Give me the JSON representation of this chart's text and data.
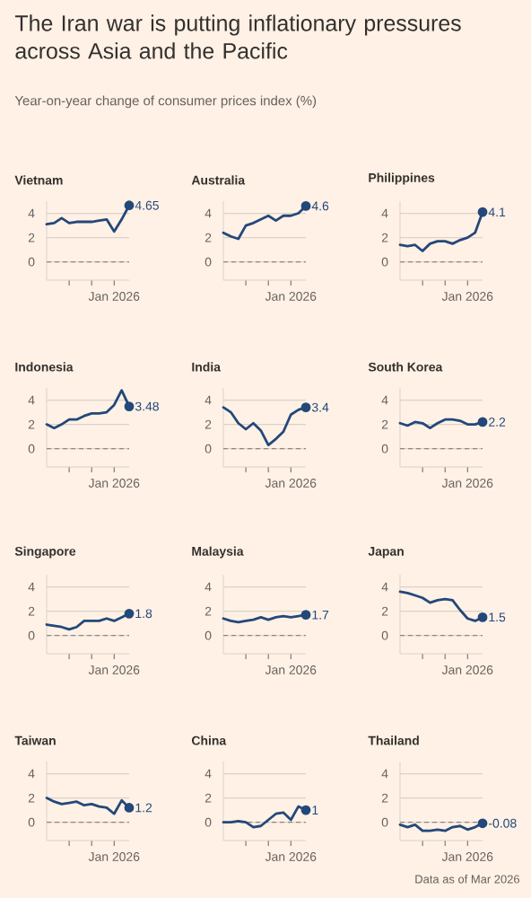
{
  "chart_data": [
    {
      "type": "other",
      "title": "The Iran war is putting inflationary pressures across Asia and the Pacific",
      "subtitle": "Year-on-year change of consumer prices index (%)",
      "annotations": [
        "Data as of Mar 2026"
      ]
    },
    {
      "type": "line",
      "title": "Vietnam",
      "ylim": [
        -1.5,
        5
      ],
      "categories": [
        null,
        null,
        null,
        null,
        null,
        null,
        null,
        null,
        null,
        "Jan 2026",
        null,
        null
      ],
      "series": [
        {
          "color": "#23487a",
          "values": [
            3.1,
            3.2,
            3.6,
            3.2,
            3.3,
            3.3,
            3.3,
            3.4,
            3.5,
            2.5,
            3.5,
            4.65
          ],
          "value_labels": [
            null,
            null,
            null,
            null,
            null,
            null,
            null,
            null,
            null,
            null,
            null,
            "4.65"
          ]
        }
      ],
      "yticks": [
        0,
        2,
        4
      ],
      "grid": "y",
      "ref_lines": [
        {
          "axis": "y",
          "value": 0,
          "line_style": "dashed"
        }
      ]
    },
    {
      "type": "line",
      "title": "Australia",
      "ylim": [
        -1.5,
        5
      ],
      "categories": [
        null,
        null,
        null,
        null,
        null,
        null,
        null,
        null,
        null,
        "Jan 2026",
        null,
        null
      ],
      "series": [
        {
          "color": "#23487a",
          "values": [
            2.4,
            2.1,
            1.9,
            3.0,
            3.2,
            3.5,
            3.8,
            3.4,
            3.8,
            3.8,
            4.0,
            4.6
          ],
          "value_labels": [
            null,
            null,
            null,
            null,
            null,
            null,
            null,
            null,
            null,
            null,
            null,
            "4.6"
          ]
        }
      ],
      "yticks": [
        0,
        2,
        4
      ],
      "grid": "y",
      "ref_lines": [
        {
          "axis": "y",
          "value": 0,
          "line_style": "dashed"
        }
      ]
    },
    {
      "type": "line",
      "title": "Philippines",
      "ylim": [
        -1.5,
        5
      ],
      "categories": [
        null,
        null,
        null,
        null,
        null,
        null,
        null,
        null,
        null,
        "Jan 2026",
        null,
        null
      ],
      "series": [
        {
          "color": "#23487a",
          "values": [
            1.4,
            1.3,
            1.4,
            0.9,
            1.5,
            1.7,
            1.7,
            1.5,
            1.8,
            2.0,
            2.4,
            4.1
          ],
          "value_labels": [
            null,
            null,
            null,
            null,
            null,
            null,
            null,
            null,
            null,
            null,
            null,
            "4.1"
          ]
        }
      ],
      "yticks": [
        0,
        2,
        4
      ],
      "grid": "y",
      "ref_lines": [
        {
          "axis": "y",
          "value": 0,
          "line_style": "dashed"
        }
      ]
    },
    {
      "type": "line",
      "title": "Indonesia",
      "ylim": [
        -1.5,
        5
      ],
      "categories": [
        null,
        null,
        null,
        null,
        null,
        null,
        null,
        null,
        null,
        "Jan 2026",
        null,
        null
      ],
      "series": [
        {
          "color": "#23487a",
          "values": [
            2.0,
            1.7,
            2.0,
            2.4,
            2.4,
            2.7,
            2.9,
            2.9,
            3.0,
            3.6,
            4.8,
            3.48
          ],
          "value_labels": [
            null,
            null,
            null,
            null,
            null,
            null,
            null,
            null,
            null,
            null,
            null,
            "3.48"
          ]
        }
      ],
      "yticks": [
        0,
        2,
        4
      ],
      "grid": "y",
      "ref_lines": [
        {
          "axis": "y",
          "value": 0,
          "line_style": "dashed"
        }
      ]
    },
    {
      "type": "line",
      "title": "India",
      "ylim": [
        -1.5,
        5
      ],
      "categories": [
        null,
        null,
        null,
        null,
        null,
        null,
        null,
        null,
        null,
        "Jan 2026",
        null,
        null
      ],
      "series": [
        {
          "color": "#23487a",
          "values": [
            3.4,
            3.0,
            2.1,
            1.6,
            2.1,
            1.5,
            0.3,
            0.8,
            1.4,
            2.8,
            3.2,
            3.4
          ],
          "value_labels": [
            null,
            null,
            null,
            null,
            null,
            null,
            null,
            null,
            null,
            null,
            null,
            "3.4"
          ]
        }
      ],
      "yticks": [
        0,
        2,
        4
      ],
      "grid": "y",
      "ref_lines": [
        {
          "axis": "y",
          "value": 0,
          "line_style": "dashed"
        }
      ]
    },
    {
      "type": "line",
      "title": "South Korea",
      "ylim": [
        -1.5,
        5
      ],
      "categories": [
        null,
        null,
        null,
        null,
        null,
        null,
        null,
        null,
        null,
        "Jan 2026",
        null,
        null
      ],
      "series": [
        {
          "color": "#23487a",
          "values": [
            2.1,
            1.9,
            2.2,
            2.1,
            1.7,
            2.1,
            2.4,
            2.4,
            2.3,
            2.0,
            2.0,
            2.2
          ],
          "value_labels": [
            null,
            null,
            null,
            null,
            null,
            null,
            null,
            null,
            null,
            null,
            null,
            "2.2"
          ]
        }
      ],
      "yticks": [
        0,
        2,
        4
      ],
      "grid": "y",
      "ref_lines": [
        {
          "axis": "y",
          "value": 0,
          "line_style": "dashed"
        }
      ]
    },
    {
      "type": "line",
      "title": "Singapore",
      "ylim": [
        -1.5,
        5
      ],
      "categories": [
        null,
        null,
        null,
        null,
        null,
        null,
        null,
        null,
        null,
        "Jan 2026",
        null,
        null
      ],
      "series": [
        {
          "color": "#23487a",
          "values": [
            0.9,
            0.8,
            0.7,
            0.5,
            0.7,
            1.2,
            1.2,
            1.2,
            1.4,
            1.2,
            1.5,
            1.8
          ],
          "value_labels": [
            null,
            null,
            null,
            null,
            null,
            null,
            null,
            null,
            null,
            null,
            null,
            "1.8"
          ]
        }
      ],
      "yticks": [
        0,
        2,
        4
      ],
      "grid": "y",
      "ref_lines": [
        {
          "axis": "y",
          "value": 0,
          "line_style": "dashed"
        }
      ]
    },
    {
      "type": "line",
      "title": "Malaysia",
      "ylim": [
        -1.5,
        5
      ],
      "categories": [
        null,
        null,
        null,
        null,
        null,
        null,
        null,
        null,
        null,
        "Jan 2026",
        null,
        null
      ],
      "series": [
        {
          "color": "#23487a",
          "values": [
            1.4,
            1.2,
            1.1,
            1.2,
            1.3,
            1.5,
            1.3,
            1.5,
            1.6,
            1.5,
            1.6,
            1.7
          ],
          "value_labels": [
            null,
            null,
            null,
            null,
            null,
            null,
            null,
            null,
            null,
            null,
            null,
            "1.7"
          ]
        }
      ],
      "yticks": [
        0,
        2,
        4
      ],
      "grid": "y",
      "ref_lines": [
        {
          "axis": "y",
          "value": 0,
          "line_style": "dashed"
        }
      ]
    },
    {
      "type": "line",
      "title": "Japan",
      "ylim": [
        -1.5,
        5
      ],
      "categories": [
        null,
        null,
        null,
        null,
        null,
        null,
        null,
        null,
        null,
        "Jan 2026",
        null,
        null
      ],
      "series": [
        {
          "color": "#23487a",
          "values": [
            3.6,
            3.5,
            3.3,
            3.1,
            2.7,
            2.9,
            3.0,
            2.9,
            2.1,
            1.4,
            1.2,
            1.5
          ],
          "value_labels": [
            null,
            null,
            null,
            null,
            null,
            null,
            null,
            null,
            null,
            null,
            null,
            "1.5"
          ]
        }
      ],
      "yticks": [
        0,
        2,
        4
      ],
      "grid": "y",
      "ref_lines": [
        {
          "axis": "y",
          "value": 0,
          "line_style": "dashed"
        }
      ]
    },
    {
      "type": "line",
      "title": "Taiwan",
      "ylim": [
        -1.5,
        5
      ],
      "categories": [
        null,
        null,
        null,
        null,
        null,
        null,
        null,
        null,
        null,
        "Jan 2026",
        null,
        null
      ],
      "series": [
        {
          "color": "#23487a",
          "values": [
            2.0,
            1.7,
            1.5,
            1.6,
            1.7,
            1.4,
            1.5,
            1.3,
            1.2,
            0.7,
            1.8,
            1.2
          ],
          "value_labels": [
            null,
            null,
            null,
            null,
            null,
            null,
            null,
            null,
            null,
            null,
            null,
            "1.2"
          ]
        }
      ],
      "yticks": [
        0,
        2,
        4
      ],
      "grid": "y",
      "ref_lines": [
        {
          "axis": "y",
          "value": 0,
          "line_style": "dashed"
        }
      ]
    },
    {
      "type": "line",
      "title": "China",
      "ylim": [
        -1.5,
        5
      ],
      "categories": [
        null,
        null,
        null,
        null,
        null,
        null,
        null,
        null,
        null,
        "Jan 2026",
        null,
        null
      ],
      "series": [
        {
          "color": "#23487a",
          "values": [
            0.0,
            0.0,
            0.1,
            0.0,
            -0.4,
            -0.3,
            0.2,
            0.7,
            0.8,
            0.2,
            1.3,
            1.0
          ],
          "value_labels": [
            null,
            null,
            null,
            null,
            null,
            null,
            null,
            null,
            null,
            null,
            null,
            "1"
          ]
        }
      ],
      "yticks": [
        0,
        2,
        4
      ],
      "grid": "y",
      "ref_lines": [
        {
          "axis": "y",
          "value": 0,
          "line_style": "dashed"
        }
      ]
    },
    {
      "type": "line",
      "title": "Thailand",
      "ylim": [
        -1.5,
        5
      ],
      "categories": [
        null,
        null,
        null,
        null,
        null,
        null,
        null,
        null,
        null,
        "Jan 2026",
        null,
        null
      ],
      "series": [
        {
          "color": "#23487a",
          "values": [
            -0.2,
            -0.4,
            -0.2,
            -0.7,
            -0.7,
            -0.6,
            -0.7,
            -0.4,
            -0.3,
            -0.6,
            -0.4,
            -0.08
          ],
          "value_labels": [
            null,
            null,
            null,
            null,
            null,
            null,
            null,
            null,
            null,
            null,
            null,
            "-0.08"
          ]
        }
      ],
      "yticks": [
        0,
        2,
        4
      ],
      "grid": "y",
      "ref_lines": [
        {
          "axis": "y",
          "value": 0,
          "line_style": "dashed"
        }
      ]
    }
  ]
}
